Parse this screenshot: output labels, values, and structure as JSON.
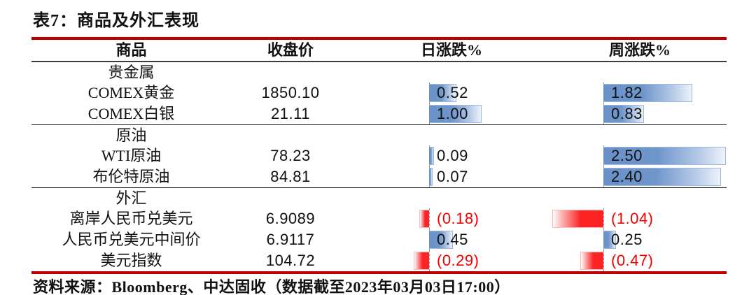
{
  "title": "表7：商品及外汇表现",
  "table": {
    "headers": [
      "商品",
      "收盘价",
      "日涨跌%",
      "周涨跌%"
    ],
    "rows": [
      {
        "type": "section",
        "label": "贵金属"
      },
      {
        "type": "data",
        "label": "COMEX黄金",
        "close": "1850.10",
        "daily": 0.52,
        "weekly": 1.82
      },
      {
        "type": "data",
        "label": "COMEX白银",
        "close": "21.11",
        "daily": 1.0,
        "weekly": 0.83
      },
      {
        "type": "section",
        "label": "原油"
      },
      {
        "type": "data",
        "label": "WTI原油",
        "close": "78.23",
        "daily": 0.09,
        "weekly": 2.5
      },
      {
        "type": "data",
        "label": "布伦特原油",
        "close": "84.81",
        "daily": 0.07,
        "weekly": 2.4
      },
      {
        "type": "section",
        "label": "外汇"
      },
      {
        "type": "data",
        "label": "离岸人民币兑美元",
        "close": "6.9089",
        "daily": -0.18,
        "weekly": -1.04
      },
      {
        "type": "data",
        "label": "人民币兑美元中间价",
        "close": "6.9117",
        "daily": 0.45,
        "weekly": 0.25
      },
      {
        "type": "data",
        "label": "美元指数",
        "close": "104.72",
        "daily": -0.29,
        "weekly": -0.47
      }
    ]
  },
  "footer": "资料来源：Bloomberg、中达固收（数据截至2023年03月03日17:00）",
  "colors": {
    "rule_red": "#c00000",
    "negative_text": "#f20000",
    "bar_positive_blue": "#6a92c8",
    "bar_negative_red": "#fb2323"
  },
  "chart_data": {
    "type": "table",
    "title": "表7：商品及外汇表现",
    "columns": [
      "商品",
      "收盘价",
      "日涨跌%",
      "周涨跌%"
    ],
    "groups": [
      {
        "name": "贵金属",
        "rows": [
          {
            "商品": "COMEX黄金",
            "收盘价": 1850.1,
            "日涨跌%": 0.52,
            "周涨跌%": 1.82
          },
          {
            "商品": "COMEX白银",
            "收盘价": 21.11,
            "日涨跌%": 1.0,
            "周涨跌%": 0.83
          }
        ]
      },
      {
        "name": "原油",
        "rows": [
          {
            "商品": "WTI原油",
            "收盘价": 78.23,
            "日涨跌%": 0.09,
            "周涨跌%": 2.5
          },
          {
            "商品": "布伦特原油",
            "收盘价": 84.81,
            "日涨跌%": 0.07,
            "周涨跌%": 2.4
          }
        ]
      },
      {
        "name": "外汇",
        "rows": [
          {
            "商品": "离岸人民币兑美元",
            "收盘价": 6.9089,
            "日涨跌%": -0.18,
            "周涨跌%": -1.04
          },
          {
            "商品": "人民币兑美元中间价",
            "收盘价": 6.9117,
            "日涨跌%": 0.45,
            "周涨跌%": 0.25
          },
          {
            "商品": "美元指数",
            "收盘价": 104.72,
            "日涨跌%": -0.29,
            "周涨跌%": -0.47
          }
        ]
      }
    ],
    "bar_visualization": {
      "style": "excel-gradient-data-bars",
      "positive": "blue bar extending right from dashed axis",
      "negative": "red bar extending left from dashed axis",
      "negative_number_format": "red text in parentheses"
    },
    "source_note": "资料来源：Bloomberg、中达固收（数据截至2023年03月03日17:00）"
  }
}
